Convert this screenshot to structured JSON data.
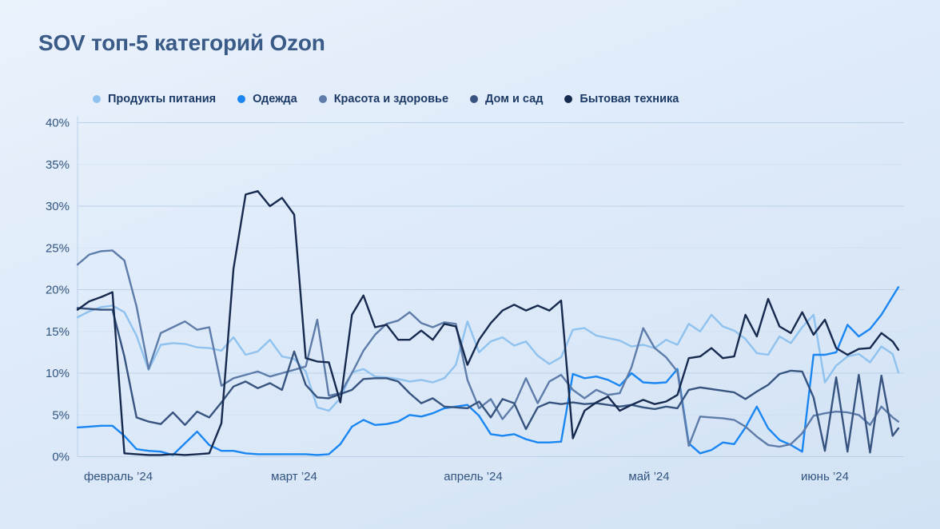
{
  "title": "SOV топ-5 категорий Ozon",
  "colors": {
    "title": "#3a5a88",
    "axis_text": "#31547f",
    "grid_major": "#b5cde6",
    "grid_minor": "#c8dcee",
    "axis_line": "#b5cde6",
    "background_top": "#eaf2fc",
    "background_bottom": "#d2e2f4"
  },
  "chart_data": {
    "type": "line",
    "title": "SOV топ-5 категорий Ozon",
    "xlabel": "",
    "ylabel": "",
    "unit": "%",
    "ylim": [
      0,
      40
    ],
    "y_ticks": [
      0,
      5,
      10,
      15,
      20,
      25,
      30,
      35,
      40
    ],
    "y_tick_suffix": "%",
    "grid": "horizontal",
    "legend_position": "top",
    "x_ticks": [
      {
        "label": "февраль ’24",
        "date": "2024-02-01"
      },
      {
        "label": "март ’24",
        "date": "2024-03-01"
      },
      {
        "label": "апрель ’24",
        "date": "2024-04-01"
      },
      {
        "label": "май ’24",
        "date": "2024-05-01"
      },
      {
        "label": "июнь ’24",
        "date": "2024-06-01"
      }
    ],
    "dates": [
      "2024-01-25",
      "2024-01-27",
      "2024-01-29",
      "2024-01-31",
      "2024-02-02",
      "2024-02-04",
      "2024-02-06",
      "2024-02-08",
      "2024-02-10",
      "2024-02-12",
      "2024-02-14",
      "2024-02-16",
      "2024-02-18",
      "2024-02-20",
      "2024-02-22",
      "2024-02-24",
      "2024-02-26",
      "2024-02-28",
      "2024-03-01",
      "2024-03-03",
      "2024-03-05",
      "2024-03-07",
      "2024-03-09",
      "2024-03-11",
      "2024-03-13",
      "2024-03-15",
      "2024-03-17",
      "2024-03-19",
      "2024-03-21",
      "2024-03-23",
      "2024-03-25",
      "2024-03-27",
      "2024-03-29",
      "2024-03-31",
      "2024-04-02",
      "2024-04-04",
      "2024-04-06",
      "2024-04-08",
      "2024-04-10",
      "2024-04-12",
      "2024-04-14",
      "2024-04-16",
      "2024-04-18",
      "2024-04-20",
      "2024-04-22",
      "2024-04-24",
      "2024-04-26",
      "2024-04-28",
      "2024-04-30",
      "2024-05-02",
      "2024-05-04",
      "2024-05-06",
      "2024-05-08",
      "2024-05-10",
      "2024-05-12",
      "2024-05-14",
      "2024-05-16",
      "2024-05-18",
      "2024-05-20",
      "2024-05-22",
      "2024-05-24",
      "2024-05-26",
      "2024-05-28",
      "2024-05-30",
      "2024-06-01",
      "2024-06-03",
      "2024-06-05",
      "2024-06-07",
      "2024-06-09",
      "2024-06-11",
      "2024-06-13",
      "2024-06-14"
    ],
    "series": [
      {
        "name": "Продукты питания",
        "slug": "food",
        "color": "#8fc2ee",
        "values": [
          16.7,
          17.4,
          17.9,
          18.1,
          17.3,
          14.5,
          10.4,
          13.4,
          13.6,
          13.5,
          13.1,
          13.0,
          12.7,
          14.3,
          12.2,
          12.6,
          14.0,
          12.0,
          11.7,
          10.2,
          5.9,
          5.5,
          7.0,
          10.1,
          10.5,
          9.6,
          9.5,
          9.3,
          9.0,
          9.2,
          8.9,
          9.4,
          11.0,
          16.2,
          12.5,
          13.8,
          14.3,
          13.3,
          13.8,
          12.1,
          11.1,
          11.9,
          15.2,
          15.4,
          14.5,
          14.2,
          13.9,
          13.2,
          13.4,
          13.0,
          14.0,
          13.4,
          15.9,
          15.0,
          17.0,
          15.6,
          15.1,
          14.1,
          12.4,
          12.2,
          14.4,
          13.6,
          15.5,
          17.0,
          8.9,
          10.9,
          12.0,
          12.3,
          11.3,
          13.2,
          12.3,
          10.1
        ]
      },
      {
        "name": "Одежда",
        "slug": "clothing",
        "color": "#1a86f2",
        "values": [
          3.5,
          3.6,
          3.7,
          3.7,
          2.5,
          0.9,
          0.7,
          0.6,
          0.2,
          1.6,
          3.0,
          1.4,
          0.7,
          0.7,
          0.4,
          0.3,
          0.3,
          0.3,
          0.3,
          0.3,
          0.2,
          0.3,
          1.5,
          3.6,
          4.4,
          3.8,
          3.9,
          4.2,
          5.0,
          4.8,
          5.2,
          5.8,
          6.0,
          6.2,
          4.9,
          2.7,
          2.5,
          2.7,
          2.1,
          1.7,
          1.7,
          1.8,
          9.9,
          9.4,
          9.6,
          9.2,
          8.5,
          10.0,
          8.9,
          8.8,
          8.9,
          10.5,
          1.6,
          0.4,
          0.8,
          1.7,
          1.5,
          3.5,
          6.0,
          3.4,
          2.0,
          1.4,
          0.6,
          12.2,
          12.2,
          12.5,
          15.8,
          14.4,
          15.3,
          17.0,
          19.2,
          20.3
        ]
      },
      {
        "name": "Красота и здоровье",
        "slug": "beauty-health",
        "color": "#5e7ca9",
        "values": [
          23.0,
          24.2,
          24.6,
          24.7,
          23.5,
          18.0,
          10.5,
          14.8,
          15.5,
          16.2,
          15.2,
          15.5,
          8.5,
          9.4,
          9.8,
          10.2,
          9.6,
          10.0,
          10.4,
          10.8,
          16.4,
          7.3,
          7.6,
          10.0,
          12.7,
          14.6,
          15.9,
          16.3,
          17.3,
          16.0,
          15.5,
          16.1,
          15.9,
          9.2,
          5.8,
          6.9,
          4.5,
          6.2,
          9.4,
          6.4,
          9.0,
          9.8,
          8.0,
          7.0,
          8.0,
          7.4,
          7.6,
          10.7,
          15.4,
          13.0,
          11.9,
          10.2,
          1.3,
          4.8,
          4.7,
          4.6,
          4.4,
          3.6,
          2.4,
          1.4,
          1.2,
          1.5,
          2.8,
          4.9,
          5.2,
          5.4,
          5.3,
          5.0,
          3.8,
          6.0,
          4.7,
          4.2
        ]
      },
      {
        "name": "Дом и сад",
        "slug": "home-garden",
        "color": "#36547f",
        "values": [
          17.8,
          17.7,
          17.6,
          17.6,
          12.0,
          4.7,
          4.2,
          3.9,
          5.3,
          3.8,
          5.4,
          4.7,
          6.5,
          8.4,
          9.0,
          8.2,
          8.8,
          8.0,
          12.6,
          8.6,
          7.1,
          7.0,
          7.5,
          8.0,
          9.3,
          9.4,
          9.4,
          9.0,
          7.6,
          6.4,
          7.0,
          6.0,
          5.9,
          5.8,
          6.6,
          4.7,
          6.9,
          6.4,
          3.3,
          5.9,
          6.5,
          6.3,
          6.5,
          6.3,
          6.4,
          6.2,
          6.0,
          6.2,
          5.9,
          5.7,
          6.0,
          5.8,
          8.0,
          8.3,
          8.1,
          7.9,
          7.7,
          6.9,
          7.8,
          8.6,
          9.9,
          10.3,
          10.2,
          7.1,
          0.7,
          9.5,
          0.6,
          9.8,
          0.5,
          9.7,
          2.5,
          3.4
        ]
      },
      {
        "name": "Бытовая техника",
        "slug": "appliances",
        "color": "#16294e",
        "values": [
          17.6,
          18.6,
          19.1,
          19.7,
          0.4,
          0.3,
          0.2,
          0.2,
          0.3,
          0.2,
          0.3,
          0.4,
          4.0,
          22.5,
          31.4,
          31.8,
          30.0,
          31.0,
          29.0,
          11.8,
          11.4,
          11.3,
          6.5,
          17.0,
          19.3,
          15.5,
          15.8,
          14.0,
          14.0,
          15.1,
          14.0,
          15.9,
          15.6,
          11.0,
          14.0,
          16.0,
          17.5,
          18.2,
          17.5,
          18.1,
          17.5,
          18.7,
          2.2,
          5.5,
          6.5,
          7.2,
          5.5,
          6.2,
          6.8,
          6.3,
          6.6,
          7.4,
          11.8,
          12.0,
          13.0,
          11.8,
          12.0,
          17.0,
          14.4,
          18.9,
          15.6,
          14.8,
          17.3,
          14.6,
          16.4,
          13.0,
          12.2,
          12.9,
          13.0,
          14.8,
          13.8,
          12.8
        ]
      }
    ]
  }
}
